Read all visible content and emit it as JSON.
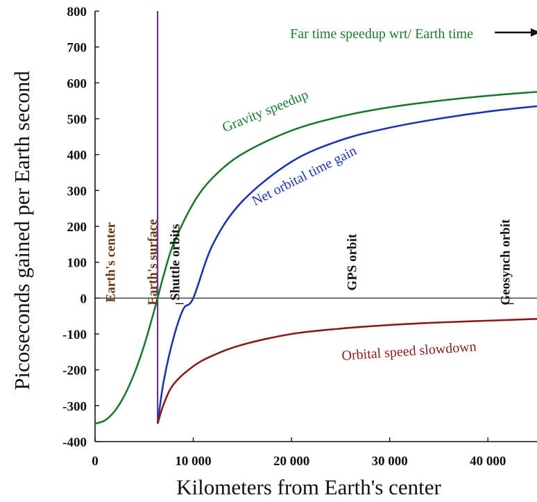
{
  "chart_data": {
    "type": "line",
    "title": "",
    "xlabel": "Kilometers from Earth's center",
    "ylabel": "Picoseconds gained per Earth second",
    "xlim": [
      0,
      45000
    ],
    "ylim": [
      -400,
      800
    ],
    "xticks": [
      {
        "value": 0,
        "label": "0"
      },
      {
        "value": 10000,
        "label": "10 000"
      },
      {
        "value": 20000,
        "label": "20 000"
      },
      {
        "value": 30000,
        "label": "30 000"
      },
      {
        "value": 40000,
        "label": "40 000"
      }
    ],
    "yticks": [
      {
        "value": 800,
        "label": "800"
      },
      {
        "value": 700,
        "label": "700"
      },
      {
        "value": 600,
        "label": "600"
      },
      {
        "value": 500,
        "label": "500"
      },
      {
        "value": 400,
        "label": "400"
      },
      {
        "value": 300,
        "label": "300"
      },
      {
        "value": 200,
        "label": "200"
      },
      {
        "value": 100,
        "label": "100"
      },
      {
        "value": 0,
        "label": "0"
      },
      {
        "value": -100,
        "label": "-100"
      },
      {
        "value": -200,
        "label": "-200"
      },
      {
        "value": -300,
        "label": "-300"
      },
      {
        "value": -400,
        "label": "-400"
      }
    ],
    "grid": false,
    "earth_radius_km": 6371,
    "series": [
      {
        "name": "Gravity speedup",
        "color": "#1a7a2e",
        "x": [
          0,
          1000,
          2000,
          3000,
          4000,
          5000,
          6000,
          6371,
          7000,
          8000,
          10000,
          12000,
          15000,
          20000,
          25000,
          30000,
          35000,
          40000,
          45000
        ],
        "y": [
          -350,
          -341,
          -315,
          -271,
          -210,
          -132,
          -37,
          0,
          65,
          152,
          264,
          336,
          402,
          467,
          506,
          532,
          550,
          564,
          575
        ]
      },
      {
        "name": "Net orbital time gain",
        "color": "#1b35b0",
        "x": [
          6371,
          7000,
          8000,
          9000,
          10000,
          12000,
          15000,
          20000,
          25000,
          30000,
          35000,
          40000,
          45000
        ],
        "y": [
          -350,
          -230,
          -110,
          -30,
          0,
          150,
          270,
          380,
          440,
          475,
          500,
          520,
          535
        ]
      },
      {
        "name": "Orbital speed slowdown",
        "color": "#8b1a1a",
        "x": [
          6371,
          7000,
          8000,
          10000,
          12000,
          15000,
          20000,
          25000,
          30000,
          35000,
          40000,
          45000
        ],
        "y": [
          -350,
          -295,
          -240,
          -190,
          -160,
          -130,
          -100,
          -85,
          -75,
          -68,
          -63,
          -58
        ]
      }
    ],
    "annotations": [
      {
        "id": "earths-center",
        "text": "Earth's center",
        "x": 2000,
        "y": 100,
        "vertical": true,
        "color": "#6b3a12"
      },
      {
        "id": "earths-surface",
        "text": "Earth's surface",
        "x": 6300,
        "y": 100,
        "vertical": true,
        "color": "#6b3a12"
      },
      {
        "id": "shuttle-orbits",
        "text": "Shuttle orbits",
        "x": 8600,
        "y": 100,
        "vertical": true,
        "color": "#111111"
      },
      {
        "id": "gps-orbit",
        "text": "GPS orbit",
        "x": 26600,
        "y": 100,
        "vertical": true,
        "color": "#111111"
      },
      {
        "id": "geosynch-orbit",
        "text": "Geosynch orbit",
        "x": 42200,
        "y": 100,
        "vertical": true,
        "color": "#111111"
      },
      {
        "id": "far-time-speedup",
        "text": "Far time speedup wrt/ Earth time",
        "x": 38500,
        "y": 725,
        "vertical": false,
        "color": "#1a7a2e"
      },
      {
        "id": "gravity-speedup-label",
        "text": "Gravity speedup",
        "x": 17500,
        "y": 510,
        "rotate": -22,
        "color": "#1a7a2e"
      },
      {
        "id": "net-orbital-label",
        "text": "Net orbital time gain",
        "x": 21500,
        "y": 330,
        "rotate": -27,
        "color": "#1b35b0"
      },
      {
        "id": "orbital-slowdown-label",
        "text": "Orbital speed slowdown",
        "x": 32000,
        "y": -160,
        "rotate": -4,
        "color": "#8b1a1a"
      }
    ],
    "surface_line_color": "#5a2080"
  }
}
